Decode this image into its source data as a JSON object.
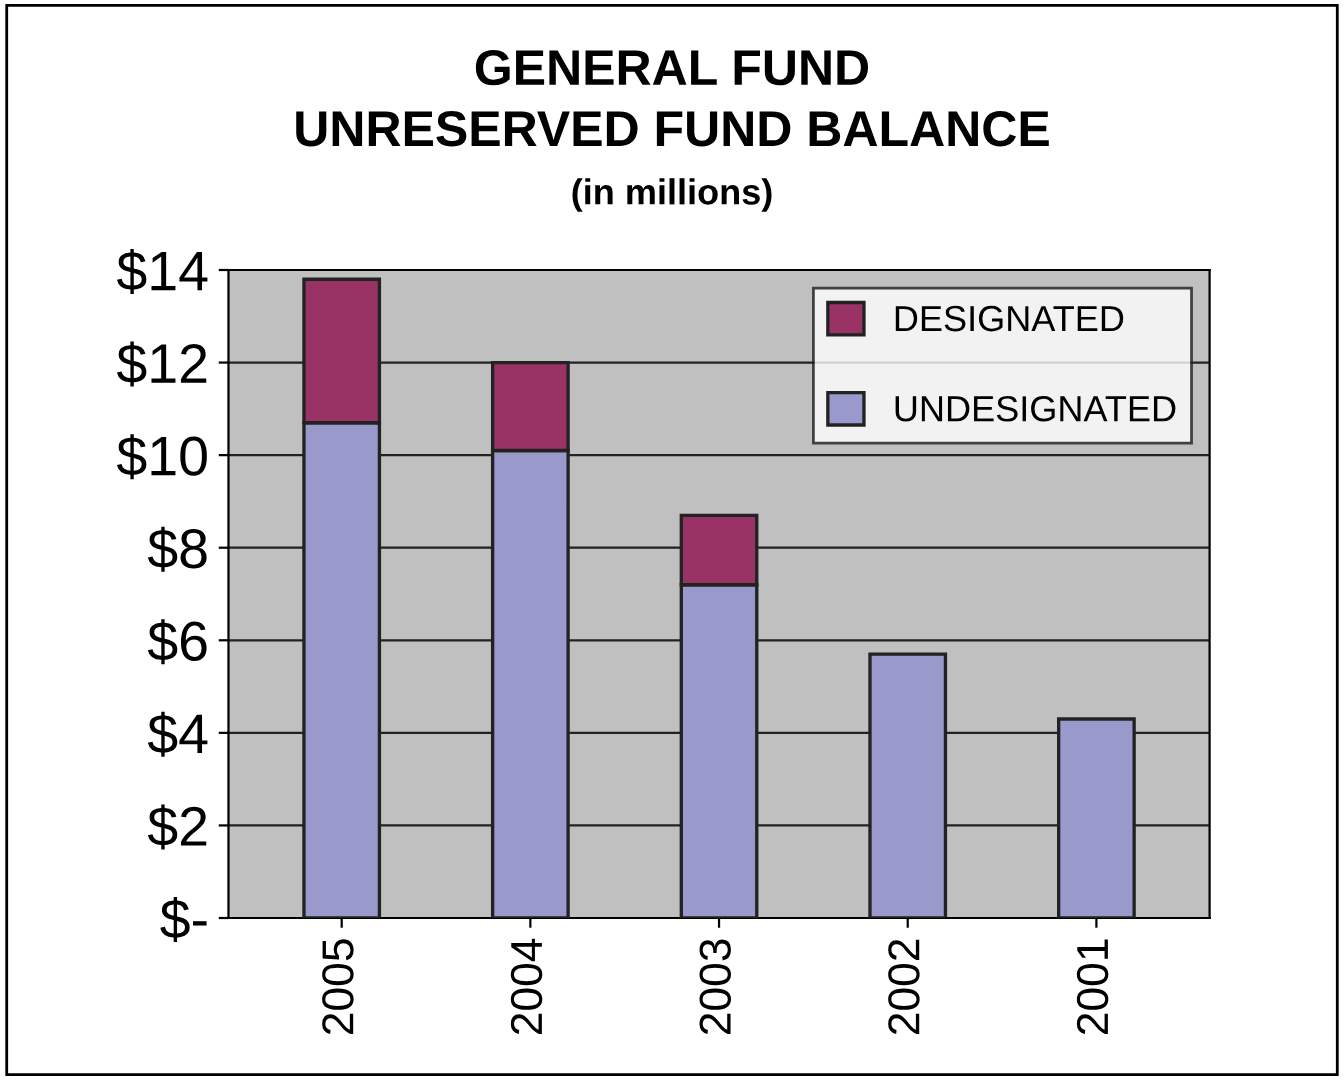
{
  "chart_data": {
    "type": "bar",
    "title": "GENERAL FUND\nUNRESERVED FUND BALANCE",
    "subtitle": "(in millions)",
    "categories": [
      "2005",
      "2004",
      "2003",
      "2002",
      "2001"
    ],
    "stacked": true,
    "series": [
      {
        "name": "UNDESIGNATED",
        "color": "#9999cc",
        "values": [
          10.7,
          10.1,
          7.2,
          5.7,
          4.3
        ]
      },
      {
        "name": "DESIGNATED",
        "color": "#993366",
        "values": [
          3.1,
          1.9,
          1.5,
          null,
          null
        ]
      }
    ],
    "ylim": [
      0,
      14
    ],
    "yticks": [
      {
        "value": 0,
        "label": "$-"
      },
      {
        "value": 2,
        "label": "$2"
      },
      {
        "value": 4,
        "label": "$4"
      },
      {
        "value": 6,
        "label": "$6"
      },
      {
        "value": 8,
        "label": "$8"
      },
      {
        "value": 10,
        "label": "$10"
      },
      {
        "value": 12,
        "label": "$12"
      },
      {
        "value": 14,
        "label": "$14"
      }
    ],
    "grid": "y",
    "legend": "top right"
  }
}
